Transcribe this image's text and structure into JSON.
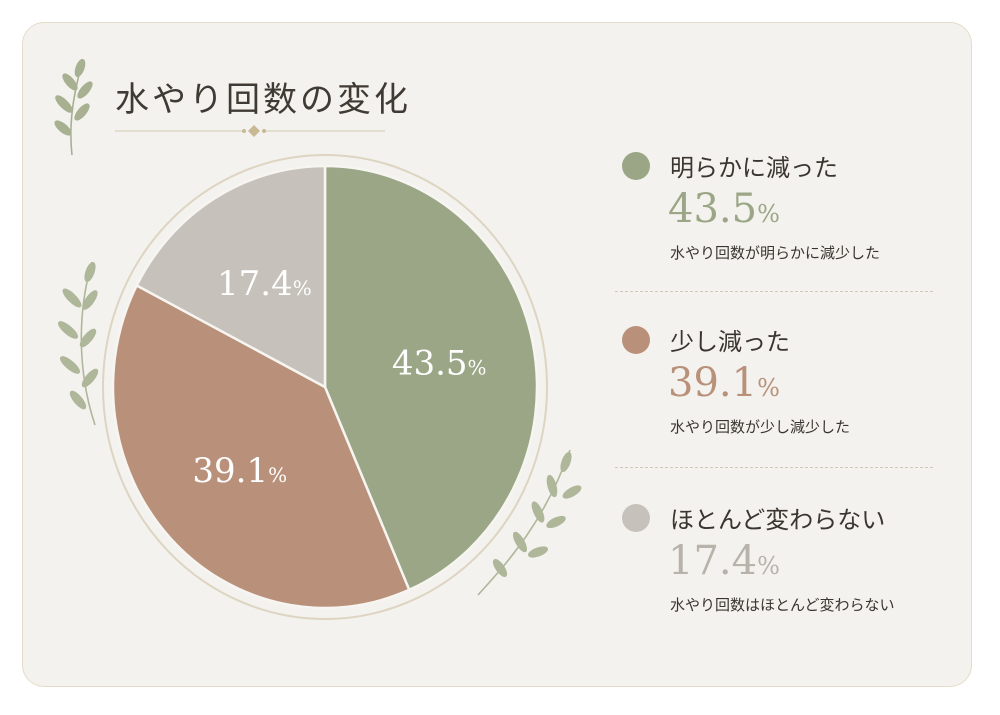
{
  "title": "水やり回数の変化",
  "colors": {
    "card_bg": "#f4f2ee",
    "green": "#9aa685",
    "brown": "#b9917a",
    "gray": "#c6c1ba",
    "leaf": "#a7b191"
  },
  "chart_data": {
    "type": "pie",
    "title": "水やり回数の変化",
    "slices": [
      {
        "label": "明らかに減った",
        "value": 43.5,
        "display": "43.5",
        "unit": "%",
        "description": "水やり回数が明らかに減少した",
        "color": "#9aa685"
      },
      {
        "label": "少し減った",
        "value": 39.1,
        "display": "39.1",
        "unit": "%",
        "description": "水やり回数が少し減少した",
        "color": "#b9917a"
      },
      {
        "label": "ほとんど変わらない",
        "value": 17.4,
        "display": "17.4",
        "unit": "%",
        "description": "水やり回数はほとんど変わらない",
        "color": "#c6c1ba"
      }
    ],
    "legend": "right"
  }
}
